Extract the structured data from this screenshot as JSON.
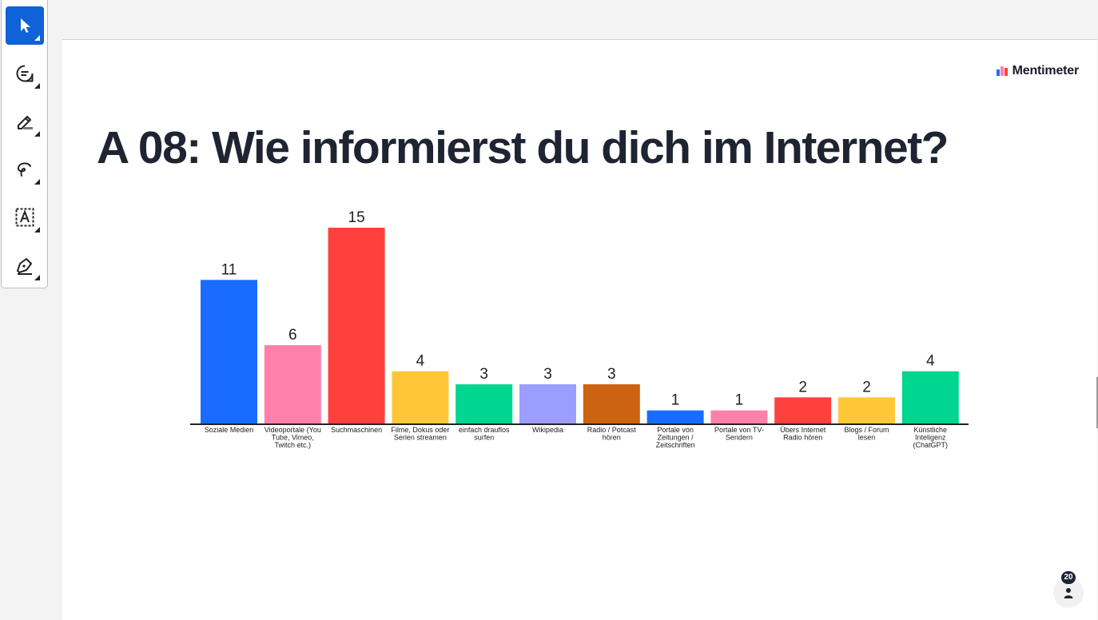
{
  "toolbar": {
    "tools": [
      {
        "name": "select",
        "icon": "cursor-arrow-icon",
        "active": true
      },
      {
        "name": "comment",
        "icon": "comment-icon",
        "active": false
      },
      {
        "name": "highlight",
        "icon": "highlighter-icon",
        "active": false
      },
      {
        "name": "draw",
        "icon": "freehand-icon",
        "active": false
      },
      {
        "name": "text",
        "icon": "text-box-icon",
        "active": false
      },
      {
        "name": "sign",
        "icon": "pen-sign-icon",
        "active": false
      }
    ],
    "active_color": "#0f62d8"
  },
  "slide": {
    "brand": "Mentimeter",
    "title": "A 08: Wie informierst du dich im Internet?"
  },
  "chart_data": {
    "type": "bar",
    "categories": [
      [
        "Soziale Medien"
      ],
      [
        "Videoportale (You",
        "Tube, Vimeo,",
        "Twitch etc.)"
      ],
      [
        "Suchmaschinen"
      ],
      [
        "Filme, Dokus oder",
        "Serien streamen"
      ],
      [
        "einfach drauflos",
        "surfen"
      ],
      [
        "Wikipedia"
      ],
      [
        "Radio / Potcast",
        "hören"
      ],
      [
        "Portale von",
        "Zeitungen /",
        "Zeitschriften"
      ],
      [
        "Portale von TV-",
        "Sendern"
      ],
      [
        "Übers Internet",
        "Radio hören"
      ],
      [
        "Blogs / Forum",
        "lesen"
      ],
      [
        "Künstliche",
        "Inteligenz",
        "(ChatGPT)"
      ]
    ],
    "values": [
      11,
      6,
      15,
      4,
      3,
      3,
      3,
      1,
      1,
      2,
      2,
      4
    ],
    "colors": [
      "#196cff",
      "#ff80ab",
      "#ff403d",
      "#ffc738",
      "#00d68f",
      "#9c9eff",
      "#cc6310",
      "#196cff",
      "#ff80ab",
      "#ff403d",
      "#ffc738",
      "#00d68f"
    ],
    "ylim": [
      0,
      15
    ]
  },
  "participants": {
    "count": "20",
    "icon": "person-icon"
  }
}
